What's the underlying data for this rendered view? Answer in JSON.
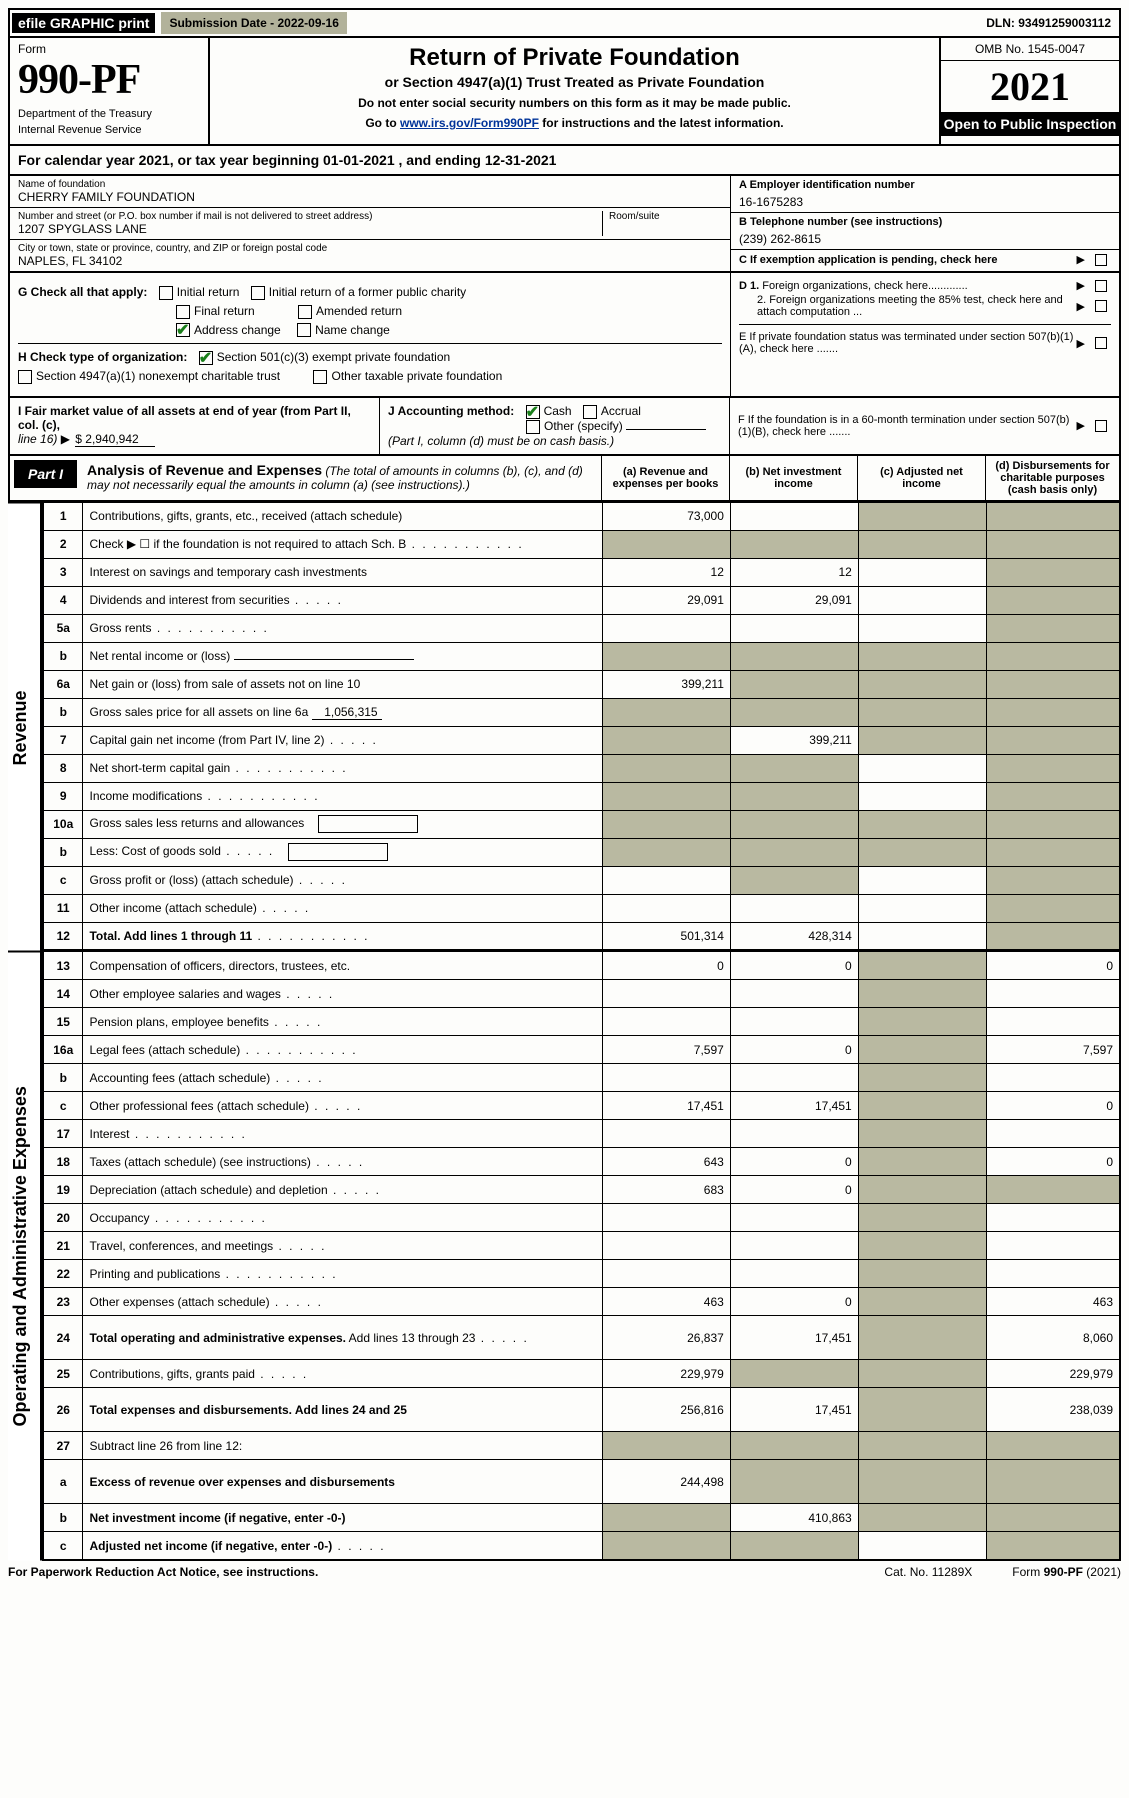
{
  "topbar": {
    "efile": "efile GRAPHIC print",
    "subdate_label": "Submission Date - 2022-09-16",
    "dln": "DLN: 93491259003112"
  },
  "header": {
    "form_label": "Form",
    "form_num": "990-PF",
    "dept1": "Department of the Treasury",
    "dept2": "Internal Revenue Service",
    "title": "Return of Private Foundation",
    "subtitle": "or Section 4947(a)(1) Trust Treated as Private Foundation",
    "note1": "Do not enter social security numbers on this form as it may be made public.",
    "note2_pre": "Go to ",
    "note2_link": "www.irs.gov/Form990PF",
    "note2_post": " for instructions and the latest information.",
    "omb": "OMB No. 1545-0047",
    "year": "2021",
    "open_pub": "Open to Public Inspection"
  },
  "cal_year": "For calendar year 2021, or tax year beginning 01-01-2021              , and ending 12-31-2021",
  "entity": {
    "name_lab": "Name of foundation",
    "name": "CHERRY FAMILY FOUNDATION",
    "addr_lab": "Number and street (or P.O. box number if mail is not delivered to street address)",
    "addr": "1207 SPYGLASS LANE",
    "room_lab": "Room/suite",
    "city_lab": "City or town, state or province, country, and ZIP or foreign postal code",
    "city": "NAPLES, FL  34102",
    "a_lab": "A Employer identification number",
    "a_val": "16-1675283",
    "b_lab": "B Telephone number (see instructions)",
    "b_val": "(239) 262-8615",
    "c_lab": "C If exemption application is pending, check here"
  },
  "g_block": {
    "label": "G Check all that apply:",
    "opts": [
      "Initial return",
      "Initial return of a former public charity",
      "Final return",
      "Amended return",
      "Address change",
      "Name change"
    ],
    "checked_idx": 4
  },
  "h_block": {
    "label": "H Check type of organization:",
    "opt1": "Section 501(c)(3) exempt private foundation",
    "opt2": "Section 4947(a)(1) nonexempt charitable trust",
    "opt3": "Other taxable private foundation",
    "checked": 0
  },
  "d_block": {
    "d1": "D 1. Foreign organizations, check here.............",
    "d2": "2. Foreign organizations meeting the 85% test, check here and attach computation ...",
    "e": "E  If private foundation status was terminated under section 507(b)(1)(A), check here .......",
    "f": "F  If the foundation is in a 60-month termination under section 507(b)(1)(B), check here ......."
  },
  "i_block": {
    "label": "I Fair market value of all assets at end of year (from Part II, col. (c),",
    "line": "line 16)",
    "val": "$  2,940,942"
  },
  "j_block": {
    "label": "J Accounting method:",
    "cash": "Cash",
    "accrual": "Accrual",
    "other": "Other (specify)",
    "note": "(Part I, column (d) must be on cash basis.)"
  },
  "part1": {
    "tab": "Part I",
    "title": "Analysis of Revenue and Expenses",
    "title_note": " (The total of amounts in columns (b), (c), and (d) may not necessarily equal the amounts in column (a) (see instructions).)",
    "col_a": "(a)   Revenue and expenses per books",
    "col_b": "(b)   Net investment income",
    "col_c": "(c)   Adjusted net income",
    "col_d": "(d)   Disbursements for charitable purposes (cash basis only)"
  },
  "vside": {
    "rev": "Revenue",
    "exp": "Operating and Administrative Expenses"
  },
  "rows": [
    {
      "n": "1",
      "d": "Contributions, gifts, grants, etc., received (attach schedule)",
      "a": "73,000",
      "b": "",
      "c": "shade",
      "dcol": "shade"
    },
    {
      "n": "2",
      "d": "Check ▶ ☐ if the foundation is not required to attach Sch. B",
      "dots": true,
      "a": "shade",
      "b": "shade",
      "c": "shade",
      "dcol": "shade"
    },
    {
      "n": "3",
      "d": "Interest on savings and temporary cash investments",
      "a": "12",
      "b": "12",
      "c": "",
      "dcol": "shade"
    },
    {
      "n": "4",
      "d": "Dividends and interest from securities",
      "dots_sm": true,
      "a": "29,091",
      "b": "29,091",
      "c": "",
      "dcol": "shade"
    },
    {
      "n": "5a",
      "d": "Gross rents",
      "dots": true,
      "a": "",
      "b": "",
      "c": "",
      "dcol": "shade"
    },
    {
      "n": "b",
      "d": "Net rental income or (loss)",
      "under": true,
      "a": "shade",
      "b": "shade",
      "c": "shade",
      "dcol": "shade"
    },
    {
      "n": "6a",
      "d": "Net gain or (loss) from sale of assets not on line 10",
      "a": "399,211",
      "b": "shade",
      "c": "shade",
      "dcol": "shade"
    },
    {
      "n": "b",
      "d": "Gross sales price for all assets on line 6a",
      "under_val": "1,056,315",
      "a": "shade",
      "b": "shade",
      "c": "shade",
      "dcol": "shade"
    },
    {
      "n": "7",
      "d": "Capital gain net income (from Part IV, line 2)",
      "dots_sm": true,
      "a": "shade",
      "b": "399,211",
      "c": "shade",
      "dcol": "shade"
    },
    {
      "n": "8",
      "d": "Net short-term capital gain",
      "dots": true,
      "a": "shade",
      "b": "shade",
      "c": "",
      "dcol": "shade"
    },
    {
      "n": "9",
      "d": "Income modifications",
      "dots": true,
      "a": "shade",
      "b": "shade",
      "c": "",
      "dcol": "shade"
    },
    {
      "n": "10a",
      "d": "Gross sales less returns and allowances",
      "box": true,
      "a": "shade",
      "b": "shade",
      "c": "shade",
      "dcol": "shade"
    },
    {
      "n": "b",
      "d": "Less: Cost of goods sold",
      "dots_sm": true,
      "box": true,
      "a": "shade",
      "b": "shade",
      "c": "shade",
      "dcol": "shade"
    },
    {
      "n": "c",
      "d": "Gross profit or (loss) (attach schedule)",
      "dots_sm": true,
      "a": "",
      "b": "shade",
      "c": "",
      "dcol": "shade"
    },
    {
      "n": "11",
      "d": "Other income (attach schedule)",
      "dots_sm": true,
      "a": "",
      "b": "",
      "c": "",
      "dcol": "shade"
    },
    {
      "n": "12",
      "d": "Total. Add lines 1 through 11",
      "bold": true,
      "dots": true,
      "a": "501,314",
      "b": "428,314",
      "c": "",
      "dcol": "shade"
    }
  ],
  "exp_rows": [
    {
      "n": "13",
      "d": "Compensation of officers, directors, trustees, etc.",
      "a": "0",
      "b": "0",
      "c": "shade",
      "dcol": "0"
    },
    {
      "n": "14",
      "d": "Other employee salaries and wages",
      "dots_sm": true,
      "a": "",
      "b": "",
      "c": "shade",
      "dcol": ""
    },
    {
      "n": "15",
      "d": "Pension plans, employee benefits",
      "dots_sm": true,
      "a": "",
      "b": "",
      "c": "shade",
      "dcol": ""
    },
    {
      "n": "16a",
      "d": "Legal fees (attach schedule)",
      "dots": true,
      "a": "7,597",
      "b": "0",
      "c": "shade",
      "dcol": "7,597"
    },
    {
      "n": "b",
      "d": "Accounting fees (attach schedule)",
      "dots_sm": true,
      "a": "",
      "b": "",
      "c": "shade",
      "dcol": ""
    },
    {
      "n": "c",
      "d": "Other professional fees (attach schedule)",
      "dots_sm": true,
      "a": "17,451",
      "b": "17,451",
      "c": "shade",
      "dcol": "0"
    },
    {
      "n": "17",
      "d": "Interest",
      "dots": true,
      "a": "",
      "b": "",
      "c": "shade",
      "dcol": ""
    },
    {
      "n": "18",
      "d": "Taxes (attach schedule) (see instructions)",
      "dots_sm": true,
      "a": "643",
      "b": "0",
      "c": "shade",
      "dcol": "0"
    },
    {
      "n": "19",
      "d": "Depreciation (attach schedule) and depletion",
      "dots_sm": true,
      "a": "683",
      "b": "0",
      "c": "shade",
      "dcol": "shade"
    },
    {
      "n": "20",
      "d": "Occupancy",
      "dots": true,
      "a": "",
      "b": "",
      "c": "shade",
      "dcol": ""
    },
    {
      "n": "21",
      "d": "Travel, conferences, and meetings",
      "dots_sm": true,
      "a": "",
      "b": "",
      "c": "shade",
      "dcol": ""
    },
    {
      "n": "22",
      "d": "Printing and publications",
      "dots": true,
      "a": "",
      "b": "",
      "c": "shade",
      "dcol": ""
    },
    {
      "n": "23",
      "d": "Other expenses (attach schedule)",
      "dots_sm": true,
      "a": "463",
      "b": "0",
      "c": "shade",
      "dcol": "463"
    },
    {
      "n": "24",
      "d": "Total operating and administrative expenses. Add lines 13 through 23",
      "bold_first": true,
      "dots_sm": true,
      "a": "26,837",
      "b": "17,451",
      "c": "shade",
      "dcol": "8,060",
      "tall": true
    },
    {
      "n": "25",
      "d": "Contributions, gifts, grants paid",
      "dots_sm": true,
      "a": "229,979",
      "b": "shade",
      "c": "shade",
      "dcol": "229,979"
    },
    {
      "n": "26",
      "d": "Total expenses and disbursements. Add lines 24 and 25",
      "bold": true,
      "a": "256,816",
      "b": "17,451",
      "c": "shade",
      "dcol": "238,039",
      "tall": true
    },
    {
      "n": "27",
      "d": "Subtract line 26 from line 12:",
      "a": "shade",
      "b": "shade",
      "c": "shade",
      "dcol": "shade"
    },
    {
      "n": "a",
      "d": "Excess of revenue over expenses and disbursements",
      "bold": true,
      "a": "244,498",
      "b": "shade",
      "c": "shade",
      "dcol": "shade",
      "tall": true
    },
    {
      "n": "b",
      "d": "Net investment income (if negative, enter -0-)",
      "bold": true,
      "a": "shade",
      "b": "410,863",
      "c": "shade",
      "dcol": "shade"
    },
    {
      "n": "c",
      "d": "Adjusted net income (if negative, enter -0-)",
      "bold": true,
      "dots_sm": true,
      "a": "shade",
      "b": "shade",
      "c": "",
      "dcol": "shade"
    }
  ],
  "footer": {
    "left": "For Paperwork Reduction Act Notice, see instructions.",
    "mid": "Cat. No. 11289X",
    "right": "Form 990-PF (2021)"
  },
  "colors": {
    "shade": "#b9b9a1",
    "black": "#000000",
    "link": "#003399",
    "check": "#1a7f1a"
  }
}
